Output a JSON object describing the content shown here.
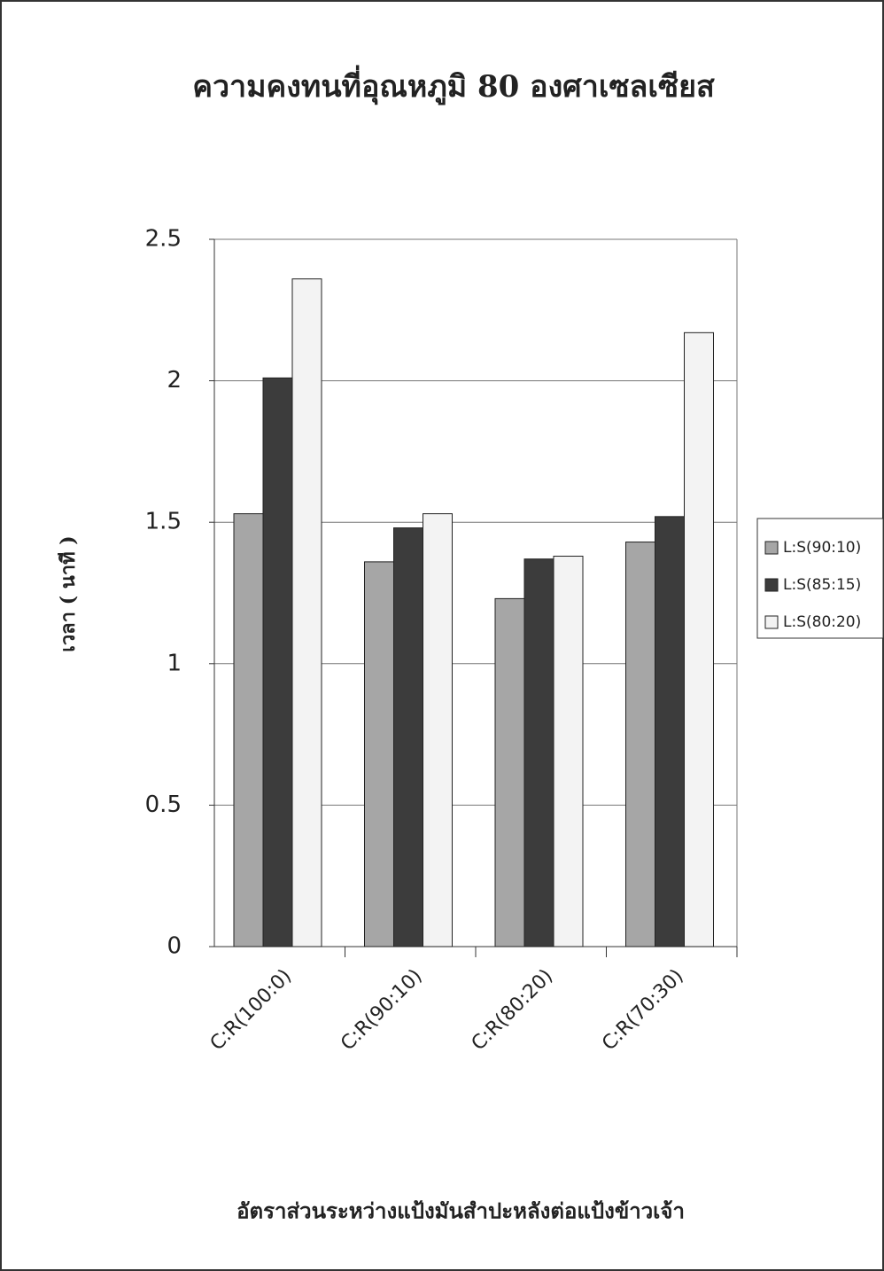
{
  "chart_data": {
    "type": "bar",
    "title": "ความคงทนที่อุณหภูมิ 80 องศาเซลเซียส",
    "x_label": "อัตราส่วนระหว่างแป้งมันสำปะหลังต่อแป้งข้าวเจ้า",
    "y_label": "เวลา ( นาที )",
    "categories": [
      "C:R(100:0)",
      "C:R(90:10)",
      "C:R(80:20)",
      "C:R(70:30)"
    ],
    "series": [
      {
        "name": "L:S(90:10)",
        "color": "#a6a6a6",
        "values": [
          1.53,
          1.36,
          1.23,
          1.43
        ]
      },
      {
        "name": "L:S(85:15)",
        "color": "#3c3c3c",
        "values": [
          2.01,
          1.48,
          1.37,
          1.52
        ]
      },
      {
        "name": "L:S(80:20)",
        "color": "#f3f3f3",
        "values": [
          2.36,
          1.53,
          1.38,
          2.17
        ]
      }
    ],
    "ylim": [
      0,
      2.5
    ],
    "yticks": [
      0,
      0.5,
      1,
      1.5,
      2,
      2.5
    ],
    "grid": true,
    "legend": "right"
  }
}
